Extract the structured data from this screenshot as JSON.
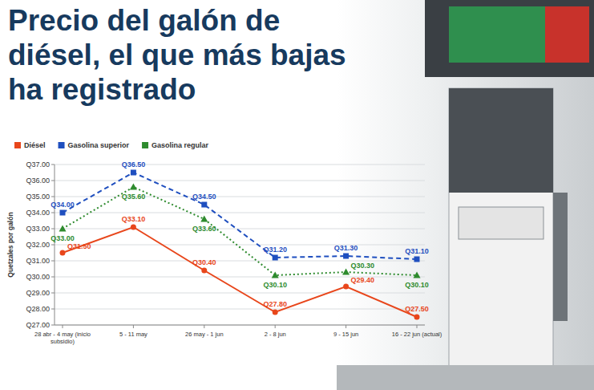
{
  "chart_data": {
    "type": "line",
    "title": "Precio del galón de diésel, el que más bajas ha registrado",
    "y_label": "Quetzales por galón",
    "categories": [
      "28 abr - 4 may (inicio subsidio)",
      "5 - 11 may",
      "26 may - 1 jun",
      "2 - 8 jun",
      "9 - 15 jun",
      "16 - 22 jun (actual)"
    ],
    "series": [
      {
        "name": "Diésel",
        "color": "#e8461b",
        "marker": "circle",
        "line_style": "solid",
        "values": [
          31.5,
          33.1,
          30.4,
          27.8,
          29.4,
          27.5
        ],
        "value_labels": [
          "Q31.50",
          "Q33.10",
          "Q30.40",
          "Q27.80",
          "Q29.40",
          "Q27.50"
        ]
      },
      {
        "name": "Gasolina superior",
        "color": "#1f4fbf",
        "marker": "square",
        "line_style": "dashed",
        "values": [
          34.0,
          36.5,
          34.5,
          31.2,
          31.3,
          31.1
        ],
        "value_labels": [
          "Q34.00",
          "Q36.50",
          "Q34.50",
          "Q31.20",
          "Q31.30",
          "Q31.10"
        ]
      },
      {
        "name": "Gasolina regular",
        "color": "#2e8b2e",
        "marker": "triangle",
        "line_style": "dotted",
        "values": [
          33.0,
          35.6,
          33.6,
          30.1,
          30.3,
          30.1
        ],
        "value_labels": [
          "Q33.00",
          "Q35.60",
          "Q33.60",
          "Q30.10",
          "Q30.30",
          "Q30.10"
        ]
      }
    ],
    "ylim": [
      27,
      37
    ],
    "yticks": [
      {
        "value": 27,
        "label": "Q27.00"
      },
      {
        "value": 28,
        "label": "Q28.00"
      },
      {
        "value": 29,
        "label": "Q29.00"
      },
      {
        "value": 30,
        "label": "Q30.00"
      },
      {
        "value": 31,
        "label": "Q31.00"
      },
      {
        "value": 32,
        "label": "Q32.00"
      },
      {
        "value": 33,
        "label": "Q33.00"
      },
      {
        "value": 34,
        "label": "Q34.00"
      },
      {
        "value": 35,
        "label": "Q35.00"
      },
      {
        "value": 36,
        "label": "Q36.00"
      },
      {
        "value": 37,
        "label": "Q37.00"
      }
    ],
    "grid": true,
    "legend": "top",
    "data_labels": true
  }
}
